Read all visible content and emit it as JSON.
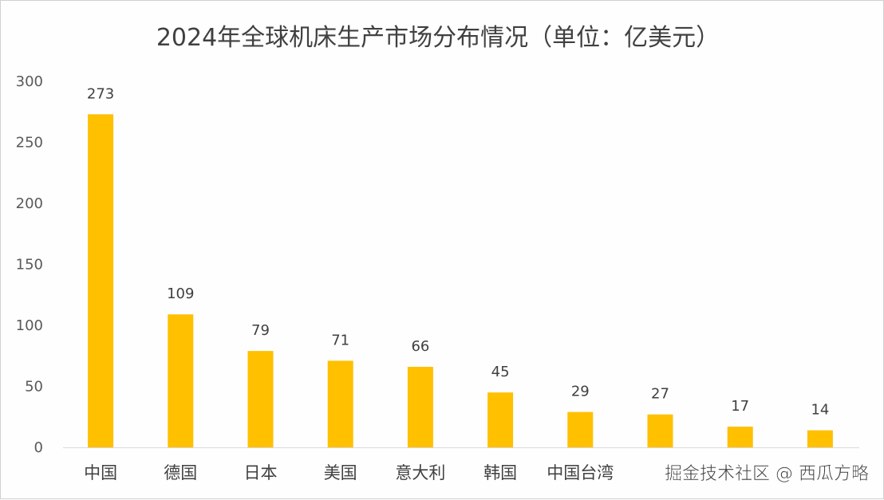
{
  "chart_data": {
    "type": "bar",
    "title": "2024年全球机床生产市场分布情况（单位：亿美元）",
    "categories": [
      "中国",
      "德国",
      "日本",
      "美国",
      "意大利",
      "韩国",
      "中国台湾",
      "",
      "",
      ""
    ],
    "values": [
      273,
      109,
      79,
      71,
      66,
      45,
      29,
      27,
      17,
      14
    ],
    "ylim": [
      0,
      300
    ],
    "yticks": [
      0,
      50,
      100,
      150,
      200,
      250,
      300
    ],
    "grid": false,
    "data_labels": true,
    "bar_color": "#FFC000"
  },
  "watermark": "掘金技术社区 @ 西瓜方略"
}
